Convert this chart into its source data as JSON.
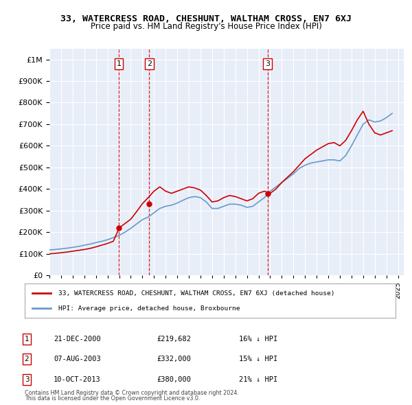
{
  "title": "33, WATERCRESS ROAD, CHESHUNT, WALTHAM CROSS, EN7 6XJ",
  "subtitle": "Price paid vs. HM Land Registry's House Price Index (HPI)",
  "ylabel_ticks": [
    "£0",
    "£100K",
    "£200K",
    "£300K",
    "£400K",
    "£500K",
    "£600K",
    "£700K",
    "£800K",
    "£900K",
    "£1M"
  ],
  "ytick_values": [
    0,
    100000,
    200000,
    300000,
    400000,
    500000,
    600000,
    700000,
    800000,
    900000,
    1000000
  ],
  "ylim": [
    0,
    1050000
  ],
  "xlim_start": 1995.0,
  "xlim_end": 2025.5,
  "background_color": "#ffffff",
  "plot_bg_color": "#e8eef8",
  "grid_color": "#ffffff",
  "hpi_color": "#6699cc",
  "price_color": "#cc0000",
  "sale_marker_color": "#cc0000",
  "vline_color": "#cc0000",
  "vline_style": "--",
  "legend_box_color": "#ffffff",
  "legend_border_color": "#aaaaaa",
  "transaction_label": "33, WATERCRESS ROAD, CHESHUNT, WALTHAM CROSS, EN7 6XJ (detached house)",
  "hpi_label": "HPI: Average price, detached house, Broxbourne",
  "purchases": [
    {
      "num": 1,
      "date_label": "21-DEC-2000",
      "year": 2000.97,
      "price": 219682,
      "pct": "16%",
      "dir": "↓"
    },
    {
      "num": 2,
      "date_label": "07-AUG-2003",
      "year": 2003.6,
      "price": 332000,
      "pct": "15%",
      "dir": "↓"
    },
    {
      "num": 3,
      "date_label": "10-OCT-2013",
      "year": 2013.77,
      "price": 380000,
      "pct": "21%",
      "dir": "↓"
    }
  ],
  "footer1": "Contains HM Land Registry data © Crown copyright and database right 2024.",
  "footer2": "This data is licensed under the Open Government Licence v3.0.",
  "hpi_years": [
    1995,
    1995.5,
    1996,
    1996.5,
    1997,
    1997.5,
    1998,
    1998.5,
    1999,
    1999.5,
    2000,
    2000.5,
    2001,
    2001.5,
    2002,
    2002.5,
    2003,
    2003.5,
    2004,
    2004.5,
    2005,
    2005.5,
    2006,
    2006.5,
    2007,
    2007.5,
    2008,
    2008.5,
    2009,
    2009.5,
    2010,
    2010.5,
    2011,
    2011.5,
    2012,
    2012.5,
    2013,
    2013.5,
    2014,
    2014.5,
    2015,
    2015.5,
    2016,
    2016.5,
    2017,
    2017.5,
    2018,
    2018.5,
    2019,
    2019.5,
    2020,
    2020.5,
    2021,
    2021.5,
    2022,
    2022.5,
    2023,
    2023.5,
    2024,
    2024.5
  ],
  "hpi_values": [
    118000,
    120000,
    123000,
    126000,
    130000,
    134000,
    140000,
    145000,
    152000,
    158000,
    165000,
    175000,
    185000,
    200000,
    218000,
    238000,
    258000,
    270000,
    290000,
    310000,
    320000,
    325000,
    335000,
    348000,
    360000,
    365000,
    360000,
    340000,
    310000,
    310000,
    320000,
    330000,
    330000,
    325000,
    315000,
    320000,
    340000,
    360000,
    390000,
    410000,
    430000,
    450000,
    470000,
    495000,
    510000,
    520000,
    525000,
    530000,
    535000,
    535000,
    530000,
    555000,
    600000,
    650000,
    700000,
    720000,
    710000,
    715000,
    730000,
    750000
  ],
  "price_years": [
    1995,
    1995.5,
    1996,
    1996.5,
    1997,
    1997.5,
    1998,
    1998.5,
    1999,
    1999.5,
    2000,
    2000.5,
    2001,
    2001.5,
    2002,
    2002.5,
    2003,
    2003.5,
    2004,
    2004.5,
    2005,
    2005.5,
    2006,
    2006.5,
    2007,
    2007.5,
    2008,
    2008.5,
    2009,
    2009.5,
    2010,
    2010.5,
    2011,
    2011.5,
    2012,
    2012.5,
    2013,
    2013.5,
    2014,
    2014.5,
    2015,
    2015.5,
    2016,
    2016.5,
    2017,
    2017.5,
    2018,
    2018.5,
    2019,
    2019.5,
    2020,
    2020.5,
    2021,
    2021.5,
    2022,
    2022.5,
    2023,
    2023.5,
    2024,
    2024.5
  ],
  "price_values": [
    100000,
    102000,
    105000,
    108000,
    112000,
    116000,
    120000,
    125000,
    132000,
    140000,
    148000,
    158000,
    219682,
    240000,
    260000,
    295000,
    332000,
    360000,
    390000,
    410000,
    390000,
    380000,
    390000,
    400000,
    410000,
    405000,
    395000,
    370000,
    340000,
    345000,
    360000,
    370000,
    365000,
    355000,
    345000,
    355000,
    380000,
    390000,
    380000,
    400000,
    430000,
    455000,
    480000,
    510000,
    540000,
    560000,
    580000,
    595000,
    610000,
    615000,
    600000,
    625000,
    670000,
    720000,
    760000,
    700000,
    660000,
    650000,
    660000,
    670000
  ]
}
